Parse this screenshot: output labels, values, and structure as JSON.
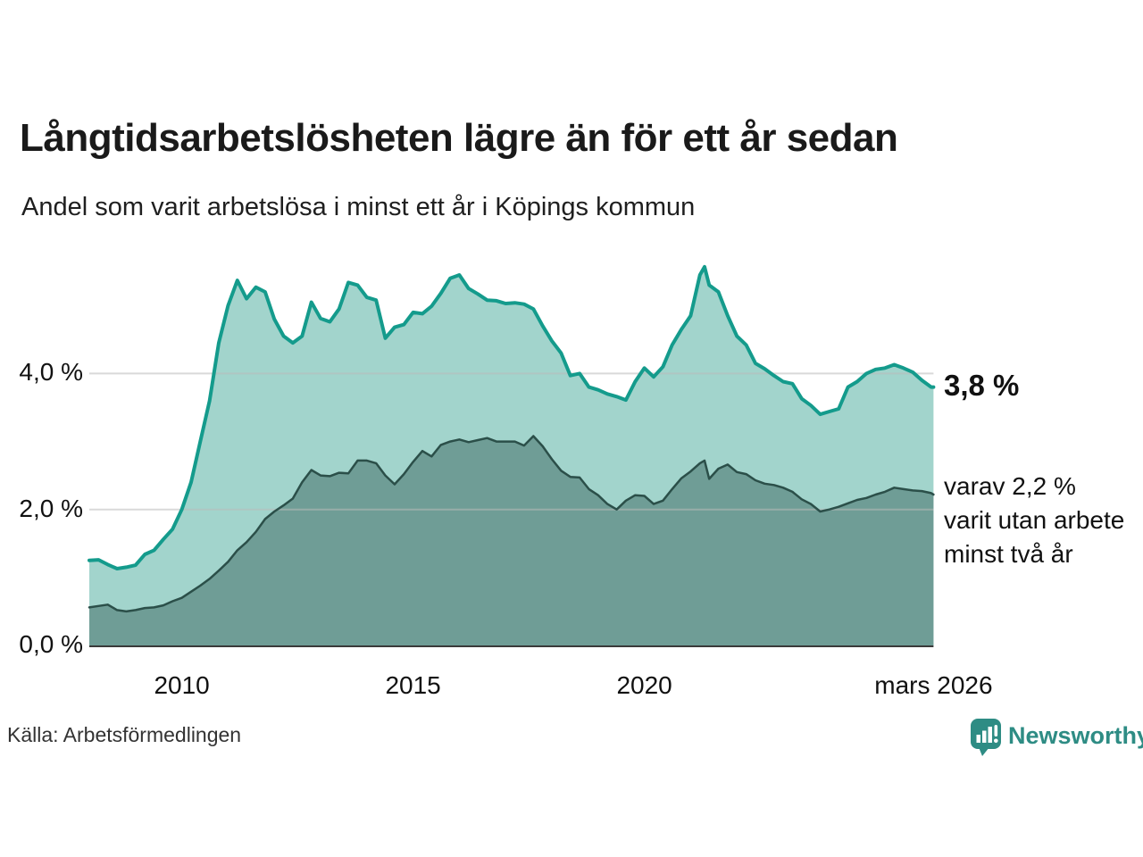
{
  "header": {
    "title": "Långtidsarbetslösheten lägre än för ett år sedan",
    "subtitle": "Andel som varit arbetslösa i minst ett år i Köpings kommun"
  },
  "annotations": {
    "end_value": "3,8 %",
    "secondary_lines": [
      "varav 2,2 %",
      "varit utan arbete",
      "minst två år"
    ]
  },
  "footer": {
    "source": "Källa: Arbetsförmedlingen",
    "brand": "Newsworthy"
  },
  "chart_data": {
    "type": "area",
    "title": "Långtidsarbetslösheten lägre än för ett år sedan",
    "subtitle": "Andel som varit arbetslösa i minst ett år i Köpings kommun",
    "xlabel": "",
    "ylabel": "",
    "x_range": [
      2008,
      2026.25
    ],
    "y_range": [
      0,
      5.66
    ],
    "grid": "horizontal",
    "legend_position": "right-annotations",
    "x_ticks": [
      {
        "label": "2010",
        "year": 2010
      },
      {
        "label": "2015",
        "year": 2015
      },
      {
        "label": "2020",
        "year": 2020
      },
      {
        "label": "mars 2026",
        "year": 2026.25
      }
    ],
    "y_ticks": [
      {
        "label": "0,0 %",
        "value": 0
      },
      {
        "label": "2,0 %",
        "value": 2
      },
      {
        "label": "4,0 %",
        "value": 4
      }
    ],
    "colors": {
      "series1_fill": "#a2d4cc",
      "series1_stroke": "#149b8c",
      "series2_fill": "#6f9d96",
      "series2_stroke": "#2b4f49",
      "gridline": "rgba(185,185,185,0.55)",
      "axis_line": "#3a3a3a",
      "brand_teal": "#2e8c84"
    },
    "x": [
      2008,
      2008.2,
      2008.4,
      2008.6,
      2008.8,
      2009,
      2009.2,
      2009.4,
      2009.6,
      2009.8,
      2010,
      2010.2,
      2010.4,
      2010.6,
      2010.8,
      2011,
      2011.2,
      2011.4,
      2011.6,
      2011.8,
      2012,
      2012.2,
      2012.4,
      2012.6,
      2012.8,
      2013,
      2013.2,
      2013.4,
      2013.6,
      2013.8,
      2014,
      2014.2,
      2014.4,
      2014.6,
      2014.8,
      2015,
      2015.2,
      2015.4,
      2015.6,
      2015.8,
      2016,
      2016.2,
      2016.4,
      2016.6,
      2016.8,
      2017,
      2017.2,
      2017.4,
      2017.6,
      2017.8,
      2018,
      2018.2,
      2018.4,
      2018.6,
      2018.8,
      2019,
      2019.2,
      2019.4,
      2019.6,
      2019.8,
      2020,
      2020.2,
      2020.4,
      2020.6,
      2020.8,
      2021,
      2021.2,
      2021.3,
      2021.4,
      2021.6,
      2021.8,
      2022,
      2022.2,
      2022.4,
      2022.6,
      2022.8,
      2023,
      2023.2,
      2023.4,
      2023.6,
      2023.8,
      2024,
      2024.2,
      2024.4,
      2024.6,
      2024.8,
      2025,
      2025.2,
      2025.4,
      2025.6,
      2025.8,
      2026,
      2026.2,
      2026.25
    ],
    "series": [
      {
        "name": "arbetslösa minst ett år",
        "end_label": "3,8 %",
        "values": [
          1.25,
          1.26,
          1.19,
          1.13,
          1.15,
          1.18,
          1.34,
          1.4,
          1.56,
          1.71,
          2.0,
          2.4,
          3.0,
          3.6,
          4.45,
          5.0,
          5.37,
          5.1,
          5.27,
          5.2,
          4.8,
          4.55,
          4.45,
          4.55,
          5.05,
          4.81,
          4.76,
          4.95,
          5.34,
          5.3,
          5.12,
          5.08,
          4.52,
          4.68,
          4.72,
          4.9,
          4.88,
          4.99,
          5.18,
          5.4,
          5.45,
          5.25,
          5.17,
          5.08,
          5.07,
          5.03,
          5.04,
          5.02,
          4.95,
          4.7,
          4.48,
          4.3,
          3.97,
          4.0,
          3.8,
          3.76,
          3.7,
          3.66,
          3.61,
          3.88,
          4.08,
          3.95,
          4.1,
          4.42,
          4.65,
          4.85,
          5.45,
          5.57,
          5.3,
          5.2,
          4.85,
          4.55,
          4.42,
          4.15,
          4.07,
          3.97,
          3.88,
          3.85,
          3.63,
          3.53,
          3.4,
          3.44,
          3.48,
          3.8,
          3.88,
          4.0,
          4.06,
          4.08,
          4.13,
          4.08,
          4.02,
          3.9,
          3.8,
          3.8
        ]
      },
      {
        "name": "varav utan arbete minst två år",
        "end_label": "varav 2,2 %",
        "values": [
          0.56,
          0.58,
          0.6,
          0.52,
          0.5,
          0.52,
          0.55,
          0.56,
          0.59,
          0.65,
          0.7,
          0.79,
          0.88,
          0.98,
          1.1,
          1.23,
          1.4,
          1.52,
          1.67,
          1.86,
          1.97,
          2.06,
          2.16,
          2.4,
          2.58,
          2.5,
          2.49,
          2.54,
          2.53,
          2.72,
          2.72,
          2.68,
          2.5,
          2.37,
          2.52,
          2.7,
          2.86,
          2.78,
          2.95,
          3.0,
          3.03,
          2.99,
          3.02,
          3.05,
          3.0,
          3.0,
          3.0,
          2.94,
          3.08,
          2.93,
          2.74,
          2.57,
          2.48,
          2.47,
          2.3,
          2.21,
          2.08,
          2.0,
          2.13,
          2.21,
          2.2,
          2.08,
          2.13,
          2.3,
          2.46,
          2.56,
          2.68,
          2.72,
          2.45,
          2.6,
          2.66,
          2.55,
          2.52,
          2.43,
          2.38,
          2.36,
          2.32,
          2.26,
          2.15,
          2.08,
          1.97,
          2.0,
          2.04,
          2.09,
          2.14,
          2.17,
          2.22,
          2.26,
          2.32,
          2.3,
          2.28,
          2.27,
          2.24,
          2.22
        ]
      }
    ]
  }
}
